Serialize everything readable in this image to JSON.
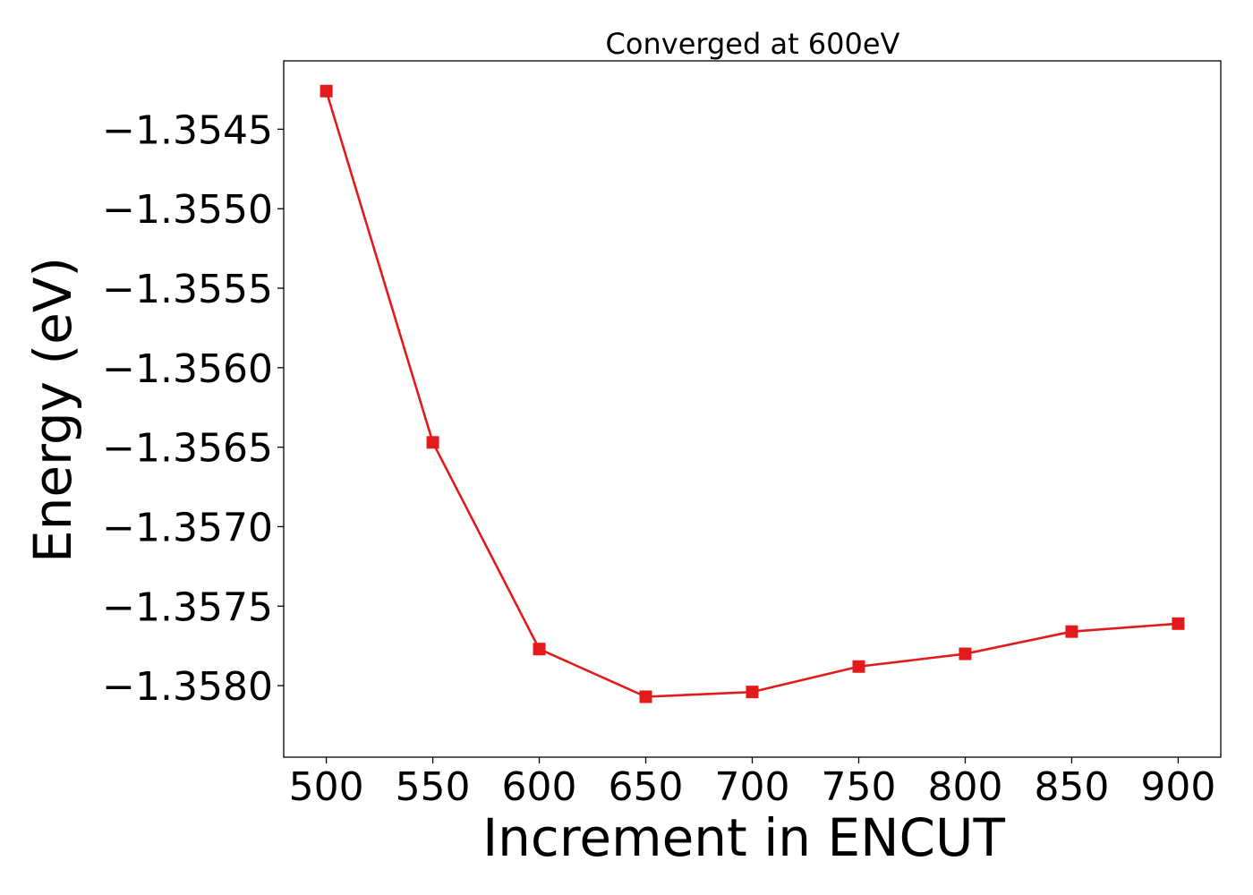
{
  "chart_data": {
    "type": "line",
    "title": "Converged at 600eV",
    "xlabel": "Increment in ENCUT",
    "ylabel": "Energy (eV)",
    "x": [
      500,
      550,
      600,
      650,
      700,
      750,
      800,
      850,
      900
    ],
    "series": [
      {
        "values": [
          -1.35426,
          -1.35647,
          -1.35777,
          -1.35807,
          -1.35804,
          -1.35788,
          -1.3578,
          -1.35766,
          -1.35761
        ],
        "color": "#e31a1c",
        "marker": "square"
      }
    ],
    "xticks": [
      500,
      550,
      600,
      650,
      700,
      750,
      800,
      850,
      900
    ],
    "xtick_labels": [
      "500",
      "550",
      "600",
      "650",
      "700",
      "750",
      "800",
      "850",
      "900"
    ],
    "yticks": [
      -1.3545,
      -1.355,
      -1.3555,
      -1.356,
      -1.3565,
      -1.357,
      -1.3575,
      -1.358
    ],
    "ytick_labels": [
      "−1.3545",
      "−1.3550",
      "−1.3555",
      "−1.3560",
      "−1.3565",
      "−1.3570",
      "−1.3575",
      "−1.3580"
    ],
    "xlim": [
      480,
      920
    ],
    "ylim": [
      -1.35845,
      -1.35407
    ],
    "grid": false,
    "legend": "none"
  }
}
